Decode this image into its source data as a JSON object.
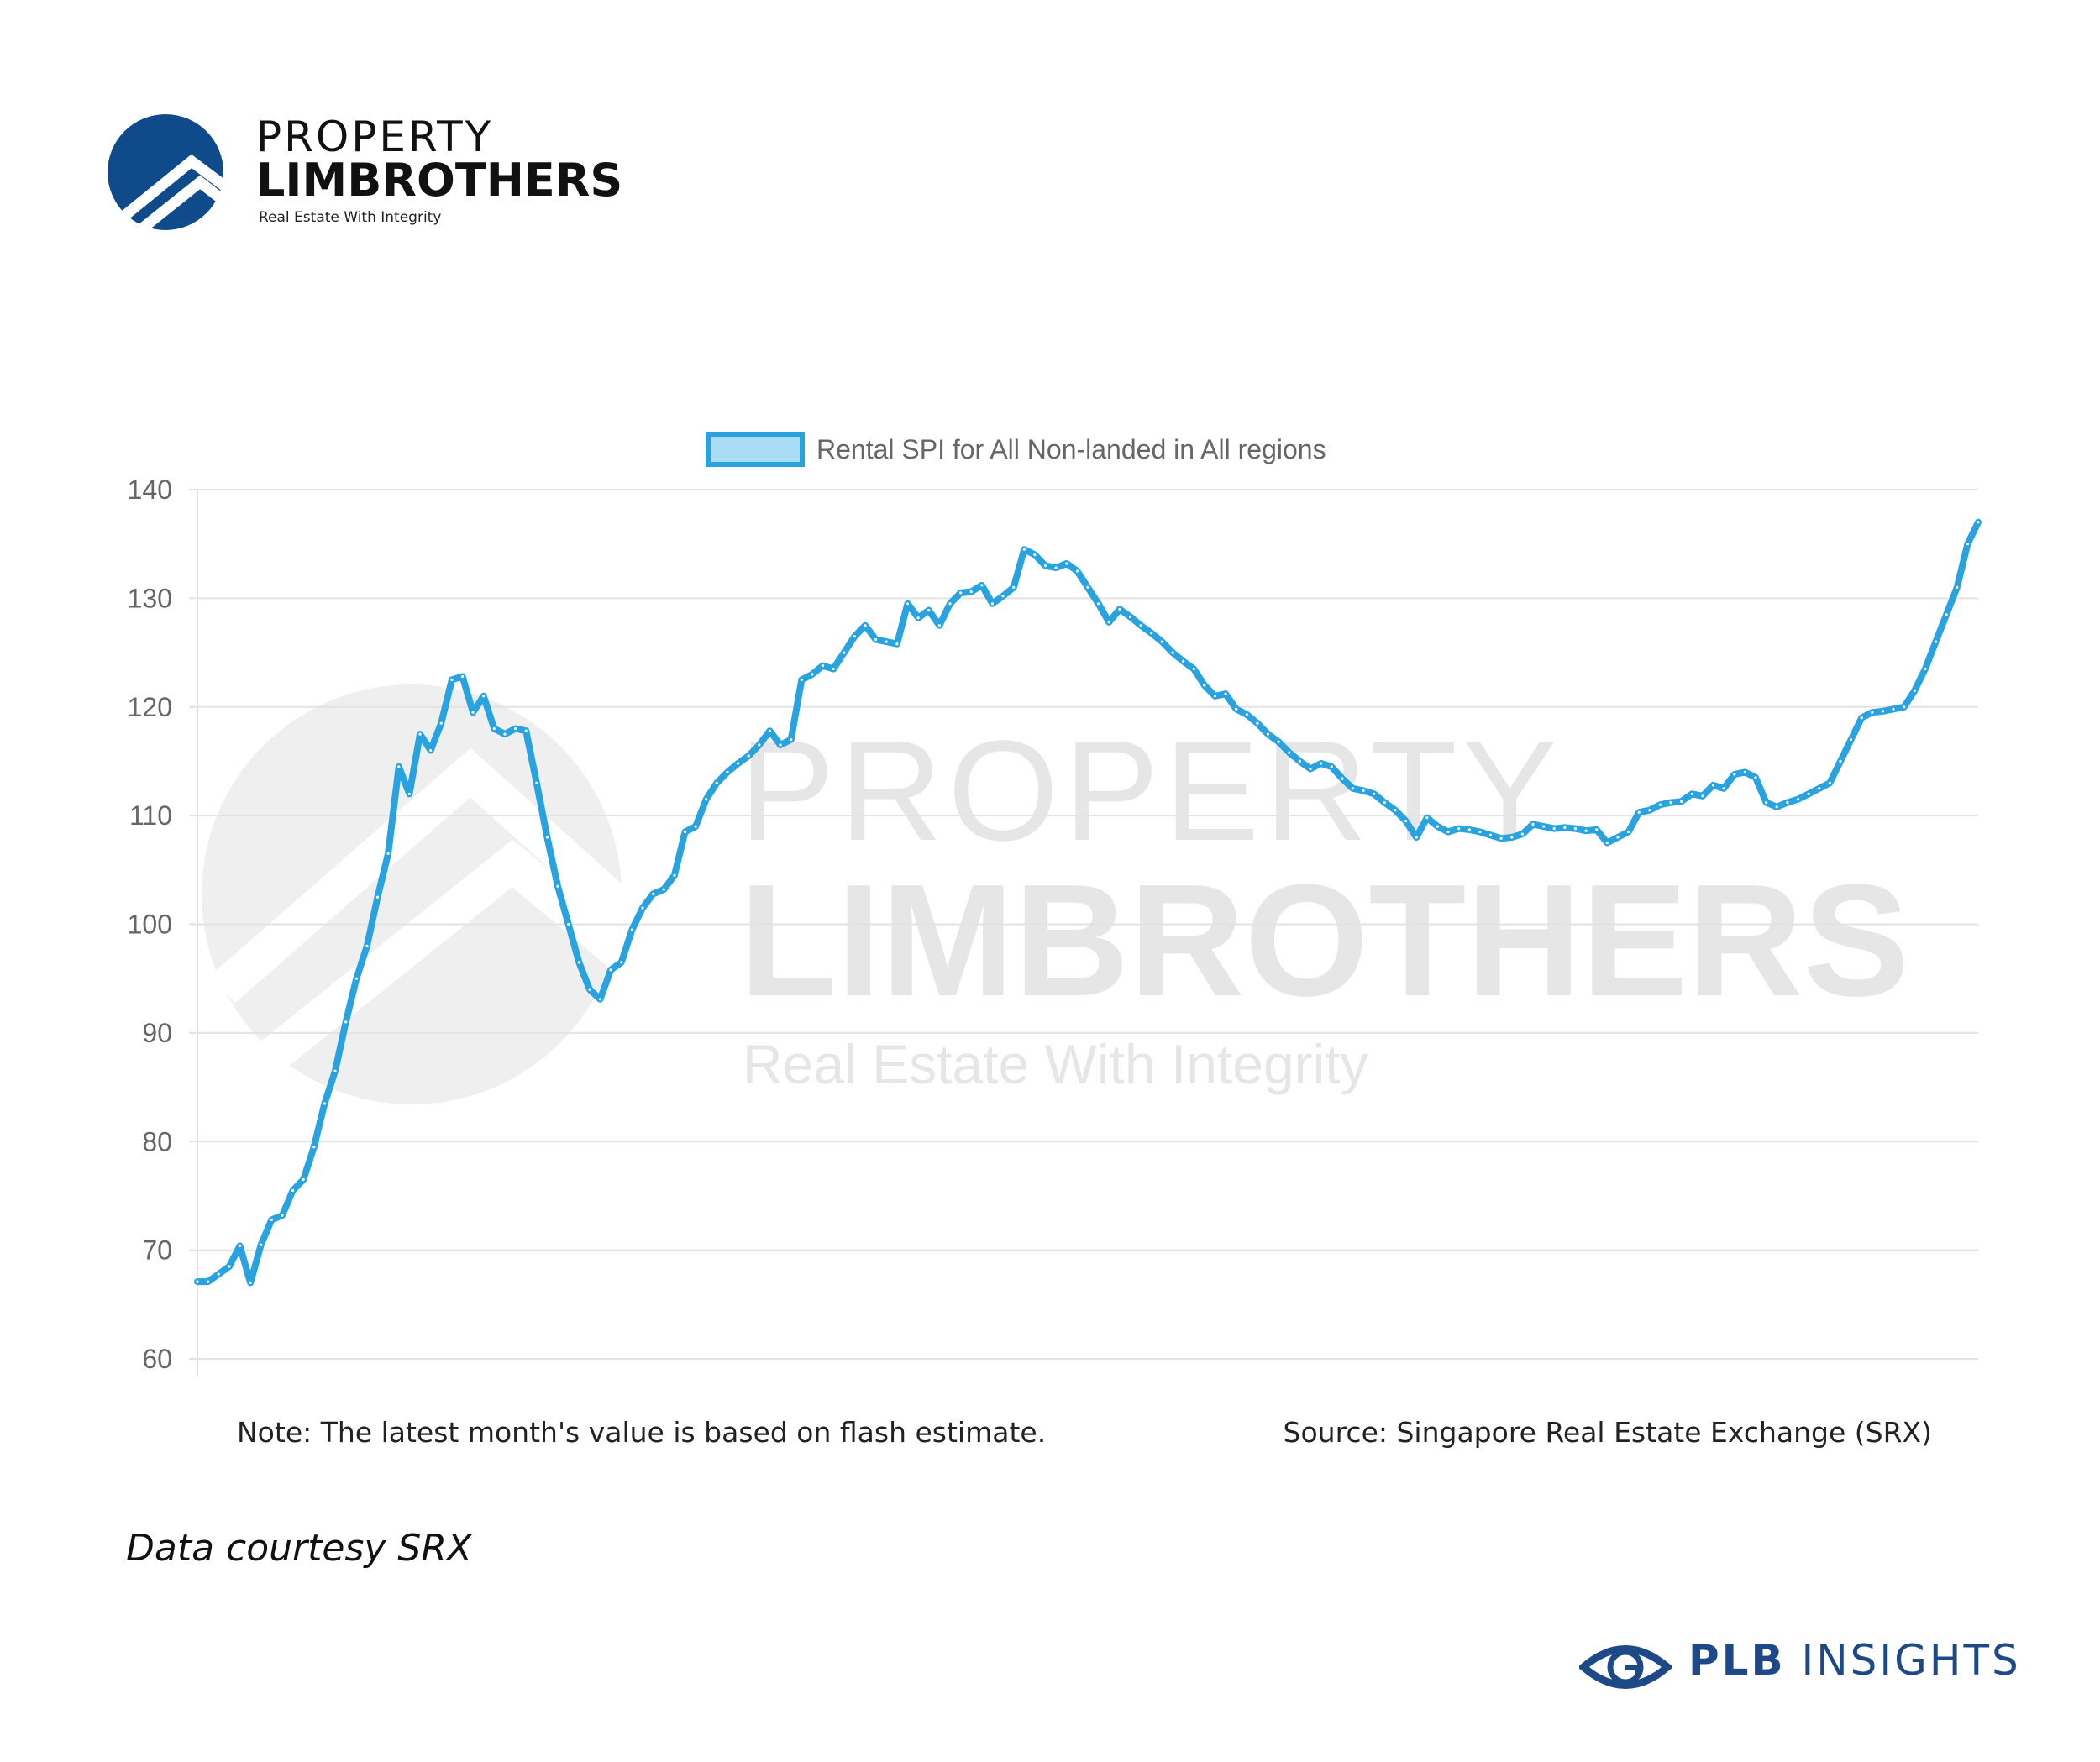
{
  "branding": {
    "line1": "PROPERTY",
    "line2": "LIMBROTHERS",
    "tagline": "Real Estate With Integrity",
    "brand_color": "#0f4a8a"
  },
  "watermark": {
    "line1": "PROPERTY",
    "line2": "LIMBROTHERS",
    "tagline": "Real Estate With Integrity"
  },
  "footer": {
    "note": "Note: The latest month's value is based on flash estimate.",
    "source": "Source: Singapore Real Estate Exchange (SRX)",
    "courtesy": "Data courtesy SRX",
    "insights_brand": "PLB",
    "insights_word": "INSIGHTS",
    "insights_color": "#1d4a86"
  },
  "chart_data": {
    "type": "line",
    "legend": "Rental SPI for All Non-landed in All regions",
    "legend_position": "top-center",
    "line_color": "#29a3e0",
    "grid": true,
    "ylim": [
      60,
      140
    ],
    "yticks": [
      60,
      70,
      80,
      90,
      100,
      110,
      120,
      130,
      140
    ],
    "series": [
      {
        "name": "Rental SPI for All Non-landed in All regions",
        "values": [
          67.1,
          67.1,
          67.8,
          68.5,
          70.4,
          67.0,
          70.5,
          72.8,
          73.2,
          75.5,
          76.5,
          79.5,
          83.5,
          86.5,
          91.0,
          95.0,
          98.0,
          102.5,
          106.5,
          114.5,
          112.0,
          117.5,
          116.0,
          118.5,
          122.5,
          122.8,
          119.5,
          121.0,
          118.0,
          117.5,
          118.0,
          117.8,
          113.0,
          108.0,
          103.5,
          100.0,
          96.5,
          94.0,
          93.1,
          95.8,
          96.5,
          99.5,
          101.5,
          102.8,
          103.2,
          104.5,
          108.5,
          109.0,
          111.5,
          113.0,
          114.0,
          114.8,
          115.5,
          116.5,
          117.8,
          116.5,
          117.0,
          122.5,
          123.0,
          123.8,
          123.5,
          125.0,
          126.5,
          127.5,
          126.2,
          126.0,
          125.8,
          129.5,
          128.2,
          128.9,
          127.5,
          129.5,
          130.5,
          130.6,
          131.2,
          129.5,
          130.2,
          131.0,
          134.5,
          134.0,
          133.0,
          132.8,
          133.2,
          132.5,
          131.0,
          129.5,
          127.8,
          129.0,
          128.3,
          127.5,
          126.8,
          126.0,
          125.0,
          124.2,
          123.5,
          122.0,
          121.0,
          121.2,
          119.8,
          119.3,
          118.5,
          117.5,
          116.8,
          115.8,
          115.0,
          114.3,
          114.8,
          114.5,
          113.4,
          112.5,
          112.3,
          112.0,
          111.2,
          110.5,
          109.5,
          108.0,
          109.8,
          109.0,
          108.5,
          108.8,
          108.7,
          108.5,
          108.2,
          107.9,
          108.0,
          108.3,
          109.2,
          109.0,
          108.8,
          108.9,
          108.8,
          108.6,
          108.7,
          107.5,
          108.0,
          108.5,
          110.3,
          110.5,
          111.0,
          111.2,
          111.3,
          112.0,
          111.8,
          112.8,
          112.5,
          113.8,
          114.0,
          113.5,
          111.2,
          110.8,
          111.2,
          111.5,
          112.0,
          112.5,
          113.0,
          115.0,
          117.0,
          119.0,
          119.5,
          119.6,
          119.8,
          120.0,
          121.5,
          123.5,
          126.0,
          128.5,
          131.0,
          135.0,
          137.0
        ]
      }
    ]
  }
}
